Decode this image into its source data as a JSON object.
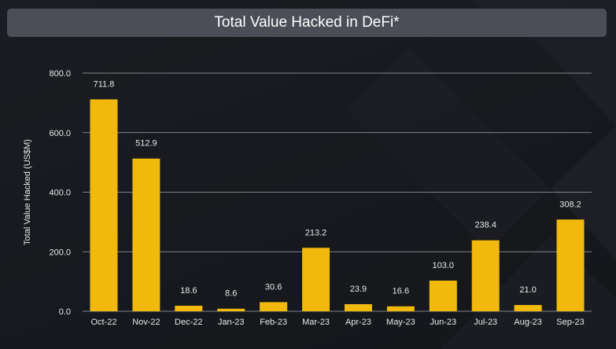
{
  "chart_data": {
    "type": "bar",
    "title": "Total Value Hacked in DeFi*",
    "xlabel": "",
    "ylabel": "Total Value Hacked (US$M)",
    "categories": [
      "Oct-22",
      "Nov-22",
      "Dec-22",
      "Jan-23",
      "Feb-23",
      "Mar-23",
      "Apr-23",
      "May-23",
      "Jun-23",
      "Jul-23",
      "Aug-23",
      "Sep-23"
    ],
    "values": [
      711.8,
      512.9,
      18.6,
      8.6,
      30.6,
      213.2,
      23.9,
      16.6,
      103.0,
      238.4,
      21.0,
      308.2
    ],
    "value_labels": [
      "711.8",
      "512.9",
      "18.6",
      "8.6",
      "30.6",
      "213.2",
      "23.9",
      "16.6",
      "103.0",
      "238.4",
      "21.0",
      "308.2"
    ],
    "ylim": [
      0,
      800
    ],
    "yticks": [
      0,
      200,
      400,
      600,
      800
    ],
    "ytick_labels": [
      "0.0",
      "200.0",
      "400.0",
      "600.0",
      "800.0"
    ],
    "grid": true,
    "legend": "none",
    "colors": {
      "bar": "#f0b90b",
      "grid": "#b9bcc2",
      "axis_text": "#e8e8e8",
      "title_bg": "#4b4e56"
    }
  }
}
